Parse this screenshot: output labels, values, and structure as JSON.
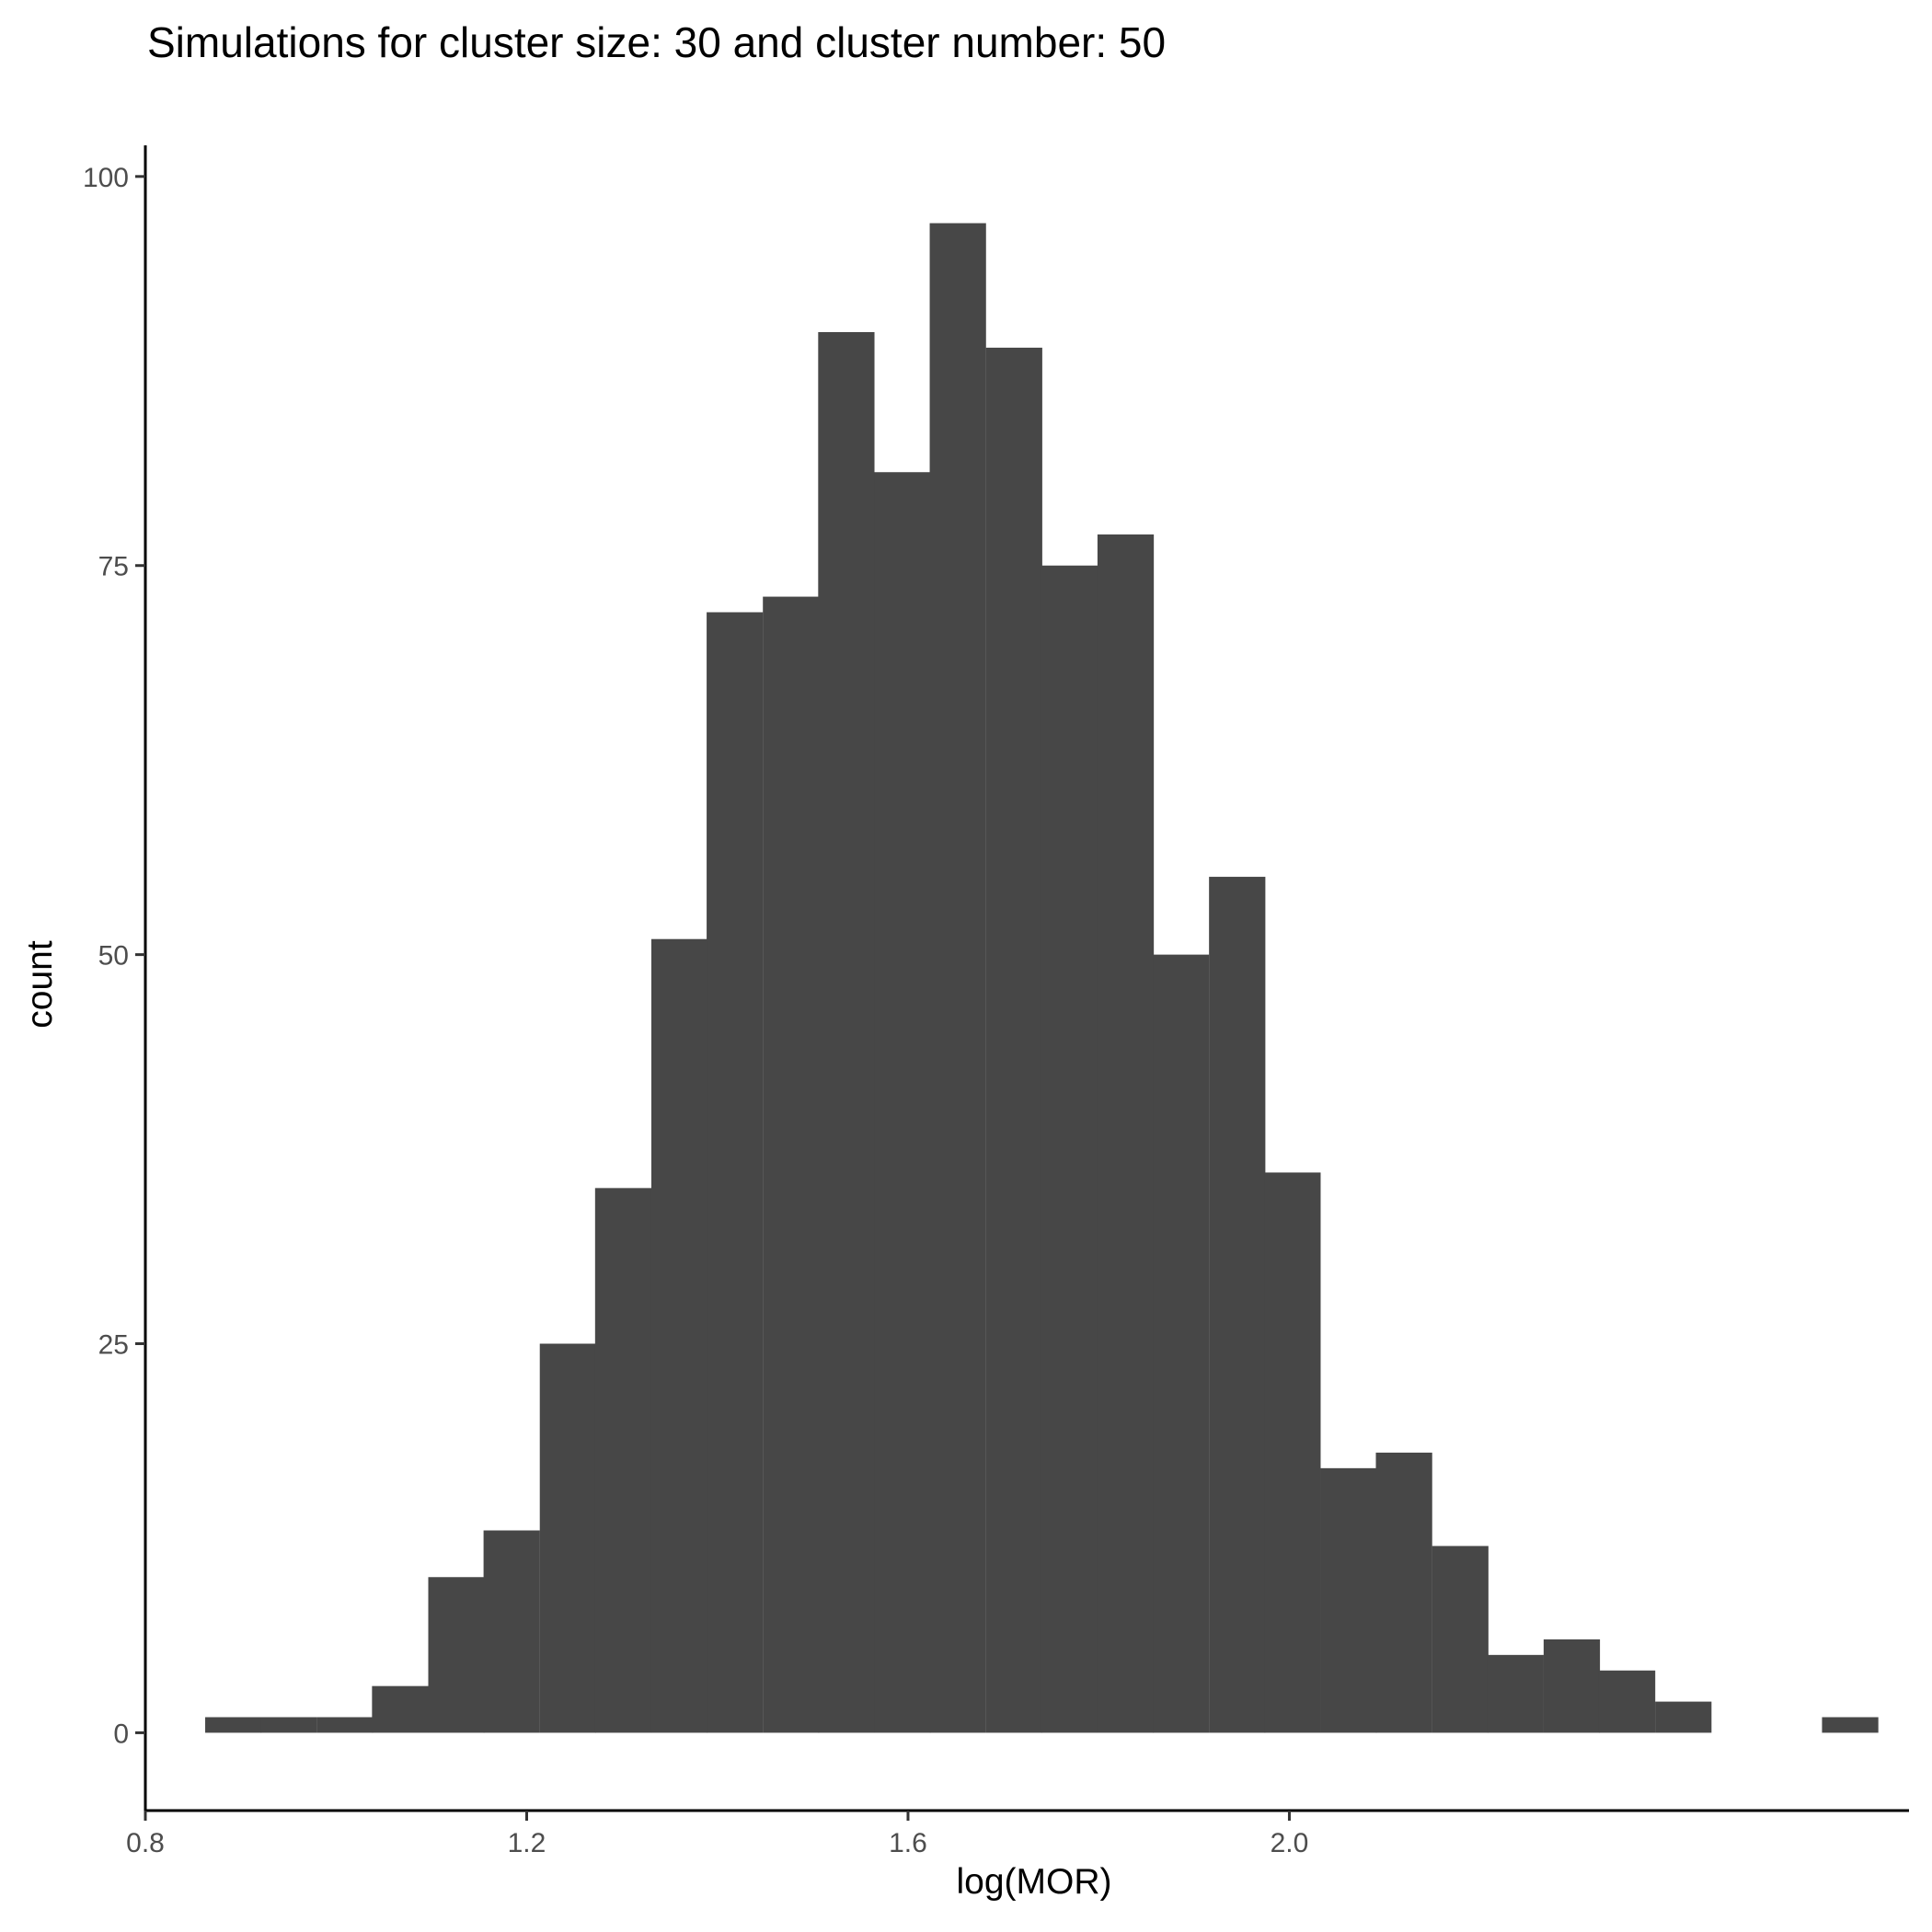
{
  "chart_data": {
    "type": "bar",
    "title": "Simulations for cluster size: 30 and cluster number: 50",
    "xlabel": "log(MOR)",
    "ylabel": "count",
    "bin_width": 0.0585,
    "bins": [
      {
        "x": 0.892,
        "count": 1
      },
      {
        "x": 0.95,
        "count": 1
      },
      {
        "x": 1.009,
        "count": 1
      },
      {
        "x": 1.067,
        "count": 3
      },
      {
        "x": 1.126,
        "count": 10
      },
      {
        "x": 1.184,
        "count": 13
      },
      {
        "x": 1.243,
        "count": 25
      },
      {
        "x": 1.301,
        "count": 35
      },
      {
        "x": 1.36,
        "count": 51
      },
      {
        "x": 1.418,
        "count": 72
      },
      {
        "x": 1.477,
        "count": 73
      },
      {
        "x": 1.535,
        "count": 90
      },
      {
        "x": 1.594,
        "count": 81
      },
      {
        "x": 1.652,
        "count": 97
      },
      {
        "x": 1.711,
        "count": 89
      },
      {
        "x": 1.769,
        "count": 75
      },
      {
        "x": 1.828,
        "count": 77
      },
      {
        "x": 1.886,
        "count": 50
      },
      {
        "x": 1.945,
        "count": 55
      },
      {
        "x": 2.003,
        "count": 36
      },
      {
        "x": 2.062,
        "count": 17
      },
      {
        "x": 2.12,
        "count": 18
      },
      {
        "x": 2.179,
        "count": 12
      },
      {
        "x": 2.237,
        "count": 5
      },
      {
        "x": 2.296,
        "count": 6
      },
      {
        "x": 2.354,
        "count": 4
      },
      {
        "x": 2.413,
        "count": 2
      },
      {
        "x": 2.471,
        "count": 0
      },
      {
        "x": 2.53,
        "count": 0
      },
      {
        "x": 2.588,
        "count": 1
      }
    ],
    "xlim": [
      0.8,
      2.65
    ],
    "ylim": [
      -5,
      102
    ],
    "x_ticks": [
      0.8,
      1.2,
      1.6,
      2.0
    ],
    "x_tick_labels": [
      "0.8",
      "1.2",
      "1.6",
      "2.0"
    ],
    "y_ticks": [
      0,
      25,
      50,
      75,
      100
    ],
    "y_tick_labels": [
      "0",
      "25",
      "50",
      "75",
      "100"
    ],
    "bar_color": "#474747",
    "grid": false,
    "legend": "none"
  }
}
